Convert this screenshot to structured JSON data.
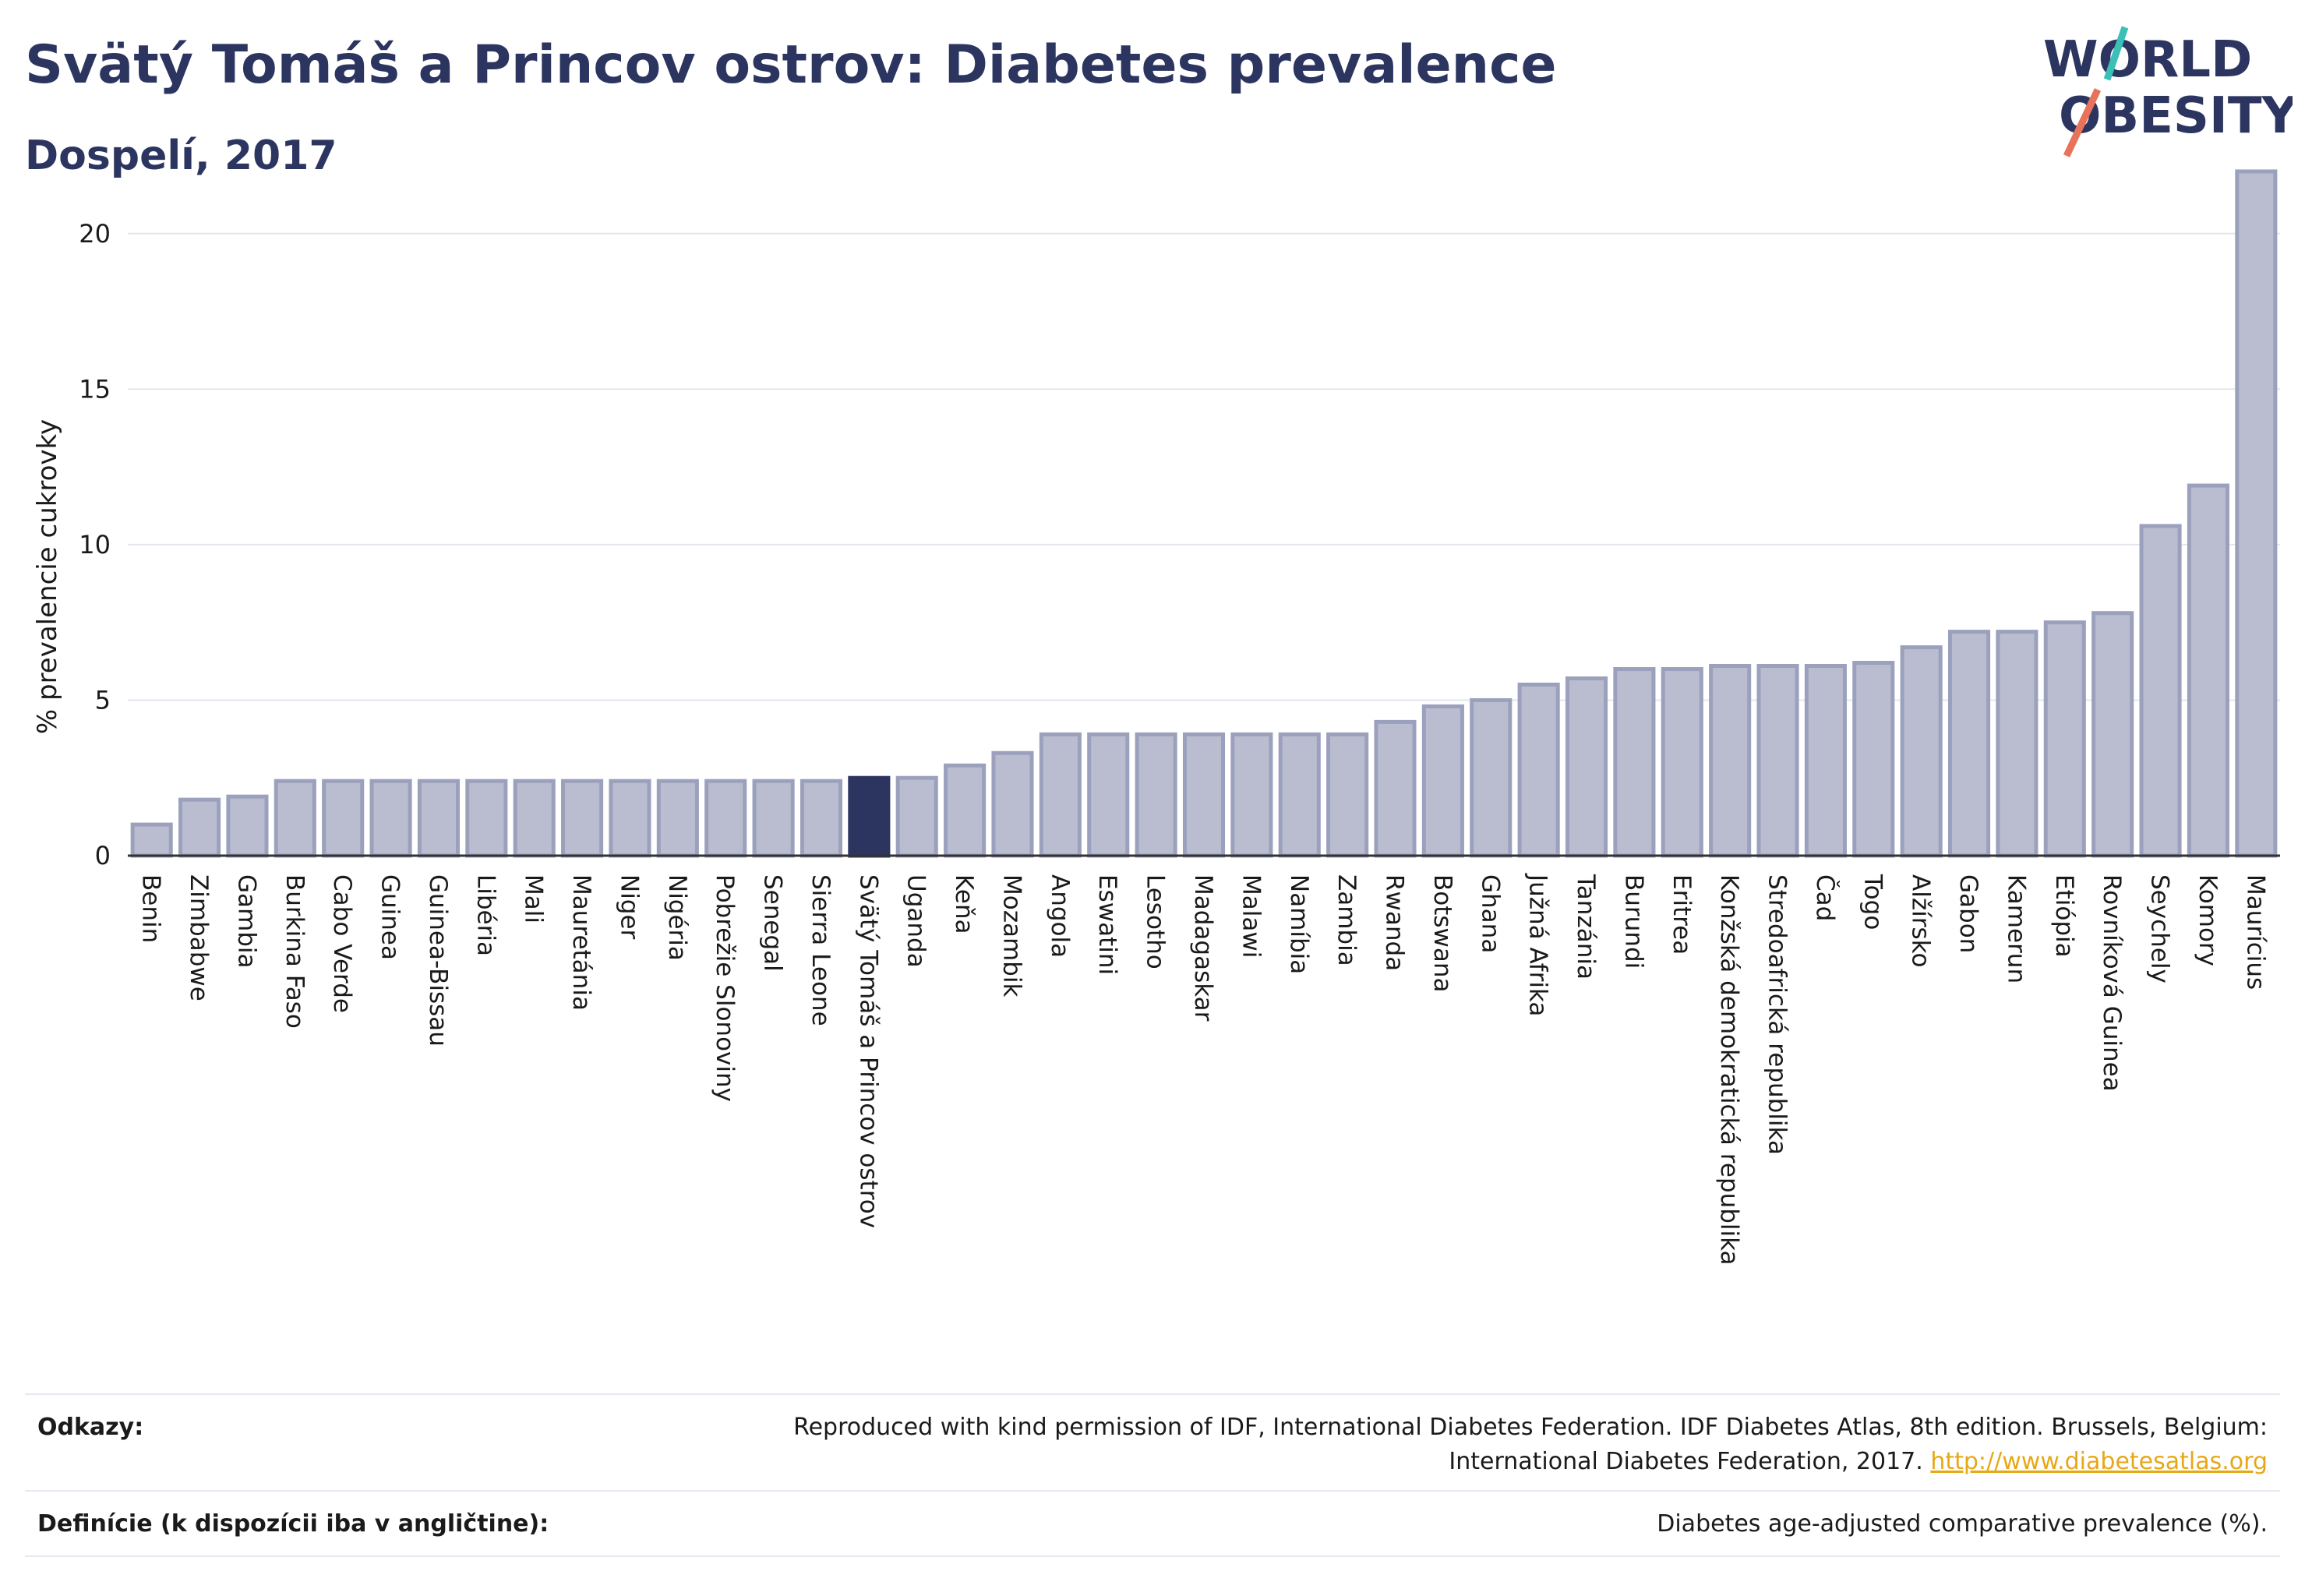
{
  "header": {
    "title": "Svätý Tomáš a Princov ostrov: Diabetes prevalence",
    "subtitle": "Dospelí, 2017",
    "logo_line1": "WORLD",
    "logo_line2": "OBESITY"
  },
  "colors": {
    "bar": "#b9bdcf",
    "bar_stroke": "#9ba1bc",
    "highlight": "#2c3560",
    "grid": "#e3e6ee",
    "title": "#2c3560",
    "logo_teal": "#3bbfb7",
    "logo_coral": "#e8735a"
  },
  "chart_data": {
    "type": "bar",
    "ylabel": "% prevalencie cukrovky",
    "xlabel": "",
    "ylim": [
      0,
      22.5
    ],
    "yticks": [
      0,
      5,
      10,
      15,
      20
    ],
    "grid": true,
    "highlight": "Svätý Tomáš a Princov ostrov",
    "categories": [
      "Benin",
      "Zimbabwe",
      "Gambia",
      "Burkina Faso",
      "Cabo Verde",
      "Guinea",
      "Guinea-Bissau",
      "Libéria",
      "Mali",
      "Mauretánia",
      "Niger",
      "Nigéria",
      "Pobrežie Slonoviny",
      "Senegal",
      "Sierra Leone",
      "Svätý Tomáš a Princov ostrov",
      "Uganda",
      "Keňa",
      "Mozambik",
      "Angola",
      "Eswatini",
      "Lesotho",
      "Madagaskar",
      "Malawi",
      "Namíbia",
      "Zambia",
      "Rwanda",
      "Botswana",
      "Ghana",
      "Južná Afrika",
      "Tanzánia",
      "Burundi",
      "Eritrea",
      "Konžská demokratická republika",
      "Stredoafrická republika",
      "Čad",
      "Togo",
      "Alžírsko",
      "Gabon",
      "Kamerun",
      "Etiópia",
      "Rovníková Guinea",
      "Seychely",
      "Komory",
      "Maurícius"
    ],
    "values": [
      1.0,
      1.8,
      1.9,
      2.4,
      2.4,
      2.4,
      2.4,
      2.4,
      2.4,
      2.4,
      2.4,
      2.4,
      2.4,
      2.4,
      2.4,
      2.5,
      2.5,
      2.9,
      3.3,
      3.9,
      3.9,
      3.9,
      3.9,
      3.9,
      3.9,
      3.9,
      4.3,
      4.8,
      5.0,
      5.5,
      5.7,
      6.0,
      6.0,
      6.1,
      6.1,
      6.1,
      6.2,
      6.7,
      7.2,
      7.2,
      7.5,
      7.8,
      10.6,
      11.9,
      22.0
    ]
  },
  "footer": {
    "sources_label": "Odkazy:",
    "sources_text_1": "Reproduced with kind permission of IDF, International Diabetes Federation. IDF Diabetes Atlas, 8th edition. Brussels, Belgium:",
    "sources_text_2": "International Diabetes Federation, 2017.",
    "sources_link": "http://www.diabetesatlas.org",
    "definition_label": "Definície (k dispozícii iba v angličtine):",
    "definition_text": "Diabetes age-adjusted comparative prevalence (%)."
  }
}
